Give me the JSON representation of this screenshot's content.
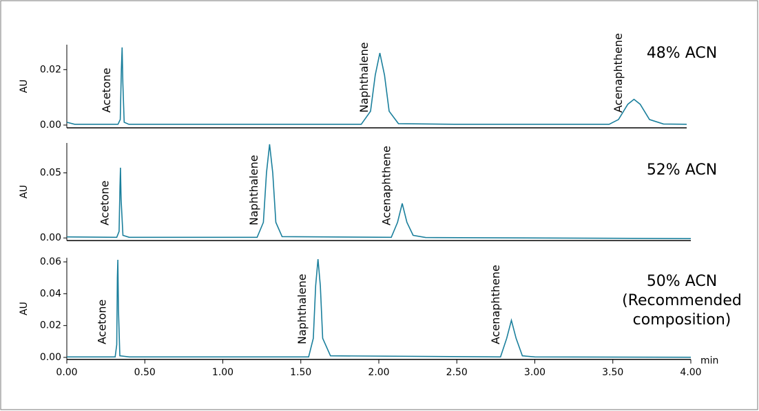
{
  "chart_data": [
    {
      "type": "line",
      "ylabel": "AU",
      "label": [
        "48% ACN"
      ],
      "color": "#1a7f9c",
      "annotations": [
        "Acetone",
        "Naphthalene",
        "Acenaphthene"
      ],
      "xlim": [
        0,
        4
      ],
      "ylim": [
        -0.001,
        0.029
      ],
      "yticks": [
        {
          "value": 0,
          "label": "0.00"
        },
        {
          "value": 0.02,
          "label": "0.02"
        }
      ],
      "x": [
        0,
        0.05,
        0.33,
        0.345,
        0.352,
        0.357,
        0.362,
        0.37,
        0.4,
        1.9,
        1.96,
        1.99,
        2.02,
        2.05,
        2.08,
        2.14,
        2.5,
        3.5,
        3.56,
        3.62,
        3.66,
        3.7,
        3.76,
        3.85,
        4.0
      ],
      "values": [
        0.001,
        0.0003,
        0.0003,
        0.002,
        0.02,
        0.028,
        0.015,
        0.001,
        0.0003,
        0.0003,
        0.005,
        0.018,
        0.026,
        0.018,
        0.005,
        0.0005,
        0.0003,
        0.0003,
        0.002,
        0.0075,
        0.0093,
        0.0075,
        0.002,
        0.0004,
        0.0003
      ]
    },
    {
      "type": "line",
      "ylabel": "AU",
      "label": [
        "52% ACN"
      ],
      "color": "#1a7f9c",
      "annotations": [
        "Acetone",
        "Naphthalene",
        "Acenaphthene"
      ],
      "xlim": [
        0,
        4
      ],
      "ylim": [
        -0.002,
        0.073
      ],
      "yticks": [
        {
          "value": 0,
          "label": "0.00"
        },
        {
          "value": 0.05,
          "label": "0.05"
        }
      ],
      "x": [
        0,
        0.32,
        0.335,
        0.341,
        0.344,
        0.348,
        0.36,
        0.4,
        1.22,
        1.26,
        1.28,
        1.3,
        1.32,
        1.34,
        1.38,
        2.08,
        2.12,
        2.15,
        2.18,
        2.22,
        2.3,
        4.0
      ],
      "values": [
        0.0008,
        0.0005,
        0.005,
        0.04,
        0.054,
        0.03,
        0.002,
        0.0005,
        0.0005,
        0.012,
        0.05,
        0.072,
        0.05,
        0.012,
        0.001,
        0.0005,
        0.012,
        0.0265,
        0.012,
        0.002,
        0.0003,
        -0.0005
      ]
    },
    {
      "type": "line",
      "ylabel": "AU",
      "xlabel": "min",
      "label": [
        "50% ACN",
        "(Recommended",
        "composition)"
      ],
      "color": "#1a7f9c",
      "annotations": [
        "Acetone",
        "Naphthalene",
        "Acenaphthene"
      ],
      "xlim": [
        0,
        4
      ],
      "ylim": [
        -0.0013,
        0.0626
      ],
      "xticks": [
        {
          "value": 0,
          "label": "0.00"
        },
        {
          "value": 0.5,
          "label": "0.50"
        },
        {
          "value": 1,
          "label": "1.00"
        },
        {
          "value": 1.5,
          "label": "1.50"
        },
        {
          "value": 2,
          "label": "2.00"
        },
        {
          "value": 2.5,
          "label": "2.50"
        },
        {
          "value": 3,
          "label": "3.00"
        },
        {
          "value": 3.5,
          "label": "3.50"
        },
        {
          "value": 4,
          "label": "4.00"
        }
      ],
      "yticks": [
        {
          "value": 0,
          "label": "0.00"
        },
        {
          "value": 0.02,
          "label": "0.02"
        },
        {
          "value": 0.04,
          "label": "0.04"
        },
        {
          "value": 0.06,
          "label": "0.06"
        }
      ],
      "x": [
        0,
        0.31,
        0.32,
        0.324,
        0.327,
        0.331,
        0.34,
        0.4,
        1.55,
        1.58,
        1.595,
        1.61,
        1.625,
        1.64,
        1.69,
        2.78,
        2.82,
        2.85,
        2.88,
        2.92,
        3.0,
        4.0
      ],
      "values": [
        0.0003,
        0.0003,
        0.008,
        0.05,
        0.0613,
        0.03,
        0.001,
        0.0003,
        0.0003,
        0.012,
        0.045,
        0.0617,
        0.045,
        0.012,
        0.001,
        0.0003,
        0.012,
        0.0233,
        0.012,
        0.001,
        0.0003,
        0.0001
      ]
    }
  ]
}
